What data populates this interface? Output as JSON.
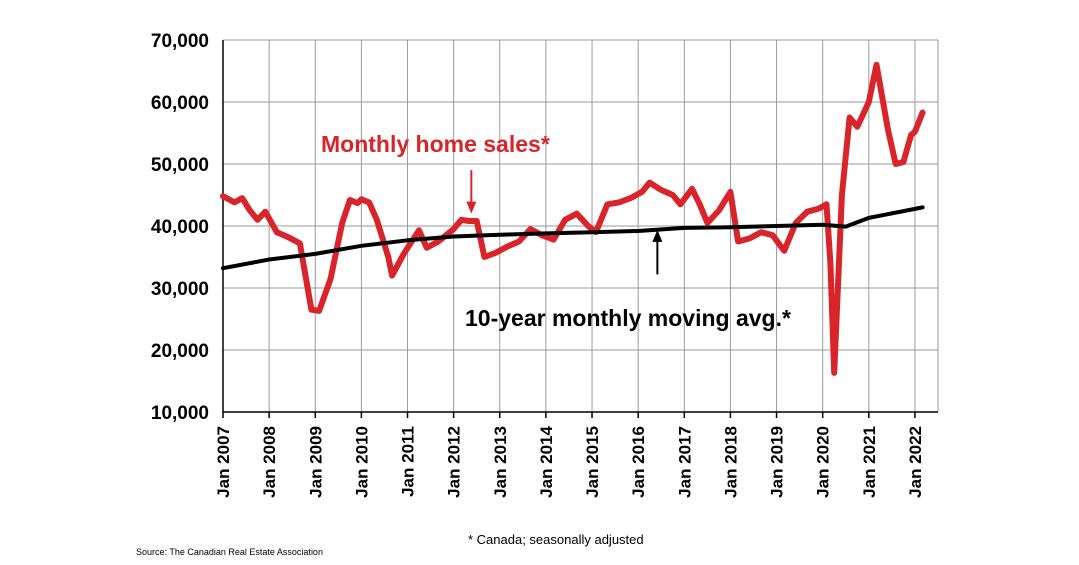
{
  "chart_data": {
    "type": "line",
    "title": "",
    "xlabel": "",
    "ylabel": "",
    "ylim": [
      10000,
      70000
    ],
    "yticks": [
      "10,000",
      "20,000",
      "30,000",
      "40,000",
      "50,000",
      "60,000",
      "70,000"
    ],
    "xticks": [
      "Jan 2007",
      "Jan 2008",
      "Jan 2009",
      "Jan 2010",
      "Jan 2011",
      "Jan 2012",
      "Jan 2013",
      "Jan 2014",
      "Jan 2015",
      "Jan 2016",
      "Jan 2017",
      "Jan 2018",
      "Jan 2019",
      "Jan 2020",
      "Jan 2021",
      "Jan 2022"
    ],
    "grid": true,
    "series": [
      {
        "name": "Monthly home sales*",
        "color": "#d9252a",
        "points": [
          [
            "2007-01",
            44800
          ],
          [
            "2007-04",
            43800
          ],
          [
            "2007-06",
            44500
          ],
          [
            "2007-08",
            42500
          ],
          [
            "2007-10",
            41000
          ],
          [
            "2007-12",
            42300
          ],
          [
            "2008-03",
            39000
          ],
          [
            "2008-06",
            38200
          ],
          [
            "2008-09",
            37200
          ],
          [
            "2008-12",
            26500
          ],
          [
            "2009-02",
            26300
          ],
          [
            "2009-05",
            31500
          ],
          [
            "2009-08",
            40500
          ],
          [
            "2009-10",
            44200
          ],
          [
            "2009-12",
            43700
          ],
          [
            "2010-01",
            44300
          ],
          [
            "2010-03",
            43800
          ],
          [
            "2010-05",
            41000
          ],
          [
            "2010-08",
            35000
          ],
          [
            "2010-09",
            32000
          ],
          [
            "2010-12",
            35500
          ],
          [
            "2011-04",
            39300
          ],
          [
            "2011-06",
            36500
          ],
          [
            "2011-09",
            37500
          ],
          [
            "2012-01",
            39500
          ],
          [
            "2012-03",
            41000
          ],
          [
            "2012-05",
            40800
          ],
          [
            "2012-07",
            40800
          ],
          [
            "2012-09",
            35000
          ],
          [
            "2012-12",
            35700
          ],
          [
            "2013-03",
            36700
          ],
          [
            "2013-06",
            37500
          ],
          [
            "2013-09",
            39500
          ],
          [
            "2013-12",
            38500
          ],
          [
            "2014-03",
            37800
          ],
          [
            "2014-06",
            41000
          ],
          [
            "2014-09",
            42000
          ],
          [
            "2014-12",
            40000
          ],
          [
            "2015-02",
            39000
          ],
          [
            "2015-05",
            43500
          ],
          [
            "2015-08",
            43800
          ],
          [
            "2015-11",
            44500
          ],
          [
            "2016-02",
            45500
          ],
          [
            "2016-04",
            47000
          ],
          [
            "2016-07",
            45800
          ],
          [
            "2016-10",
            45000
          ],
          [
            "2016-12",
            43500
          ],
          [
            "2017-03",
            46000
          ],
          [
            "2017-05",
            43500
          ],
          [
            "2017-07",
            40500
          ],
          [
            "2017-10",
            42500
          ],
          [
            "2018-01",
            45500
          ],
          [
            "2018-03",
            37500
          ],
          [
            "2018-06",
            38000
          ],
          [
            "2018-09",
            39000
          ],
          [
            "2018-12",
            38500
          ],
          [
            "2019-03",
            36000
          ],
          [
            "2019-06",
            40500
          ],
          [
            "2019-09",
            42300
          ],
          [
            "2019-12",
            42800
          ],
          [
            "2020-02",
            43500
          ],
          [
            "2020-03",
            34000
          ],
          [
            "2020-04",
            16300
          ],
          [
            "2020-06",
            45000
          ],
          [
            "2020-08",
            57500
          ],
          [
            "2020-10",
            56000
          ],
          [
            "2021-01",
            60000
          ],
          [
            "2021-03",
            66000
          ],
          [
            "2021-06",
            55500
          ],
          [
            "2021-08",
            50000
          ],
          [
            "2021-10",
            50300
          ],
          [
            "2021-12",
            54700
          ],
          [
            "2022-01",
            55200
          ],
          [
            "2022-03",
            58300
          ]
        ]
      },
      {
        "name": "10-year monthly moving avg.*",
        "color": "#000000",
        "points": [
          [
            "2007-01",
            33200
          ],
          [
            "2008-01",
            34600
          ],
          [
            "2009-01",
            35500
          ],
          [
            "2010-01",
            36800
          ],
          [
            "2011-01",
            37700
          ],
          [
            "2012-01",
            38300
          ],
          [
            "2013-01",
            38600
          ],
          [
            "2014-01",
            38800
          ],
          [
            "2015-01",
            39000
          ],
          [
            "2016-01",
            39200
          ],
          [
            "2017-01",
            39700
          ],
          [
            "2018-01",
            39800
          ],
          [
            "2019-01",
            40000
          ],
          [
            "2020-01",
            40200
          ],
          [
            "2020-07",
            39900
          ],
          [
            "2021-01",
            41300
          ],
          [
            "2022-03",
            43000
          ]
        ]
      }
    ],
    "annotations": [
      {
        "text": "Monthly home sales*",
        "color": "#d9252a",
        "arrow_from": [
          "2012-03",
          49000
        ],
        "arrow_to": [
          "2012-03",
          42000
        ]
      },
      {
        "text": "10-year monthly moving avg.*",
        "color": "#000000",
        "arrow_from": [
          "2016-06",
          32200
        ],
        "arrow_to": [
          "2016-06",
          39700
        ]
      }
    ]
  },
  "footnote": "* Canada; seasonally adjusted",
  "source": "Source: The Canadian Real Estate Association"
}
